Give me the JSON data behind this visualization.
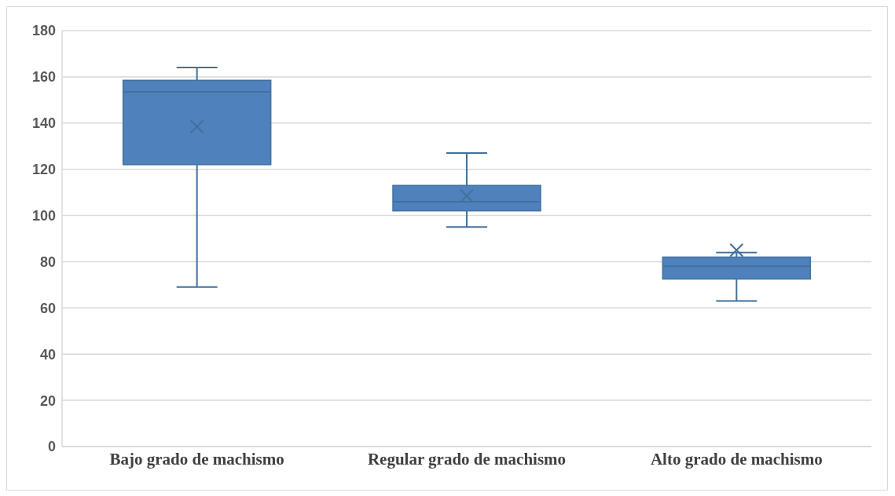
{
  "chart_data": {
    "type": "box",
    "categories": [
      "Bajo grado de machismo",
      "Regular grado de machismo",
      "Alto grado de machismo"
    ],
    "color": "#4f81bd",
    "boxes": [
      {
        "low": 69,
        "q1": 122,
        "median": 153.5,
        "q3": 158.5,
        "high": 164,
        "mean": 138.5
      },
      {
        "low": 95,
        "q1": 102,
        "median": 106,
        "q3": 113,
        "high": 127,
        "mean": 108.5
      },
      {
        "low": 63,
        "q1": 72.5,
        "median": 78,
        "q3": 82,
        "high": 84,
        "mean": 85
      }
    ],
    "ylim": [
      0,
      180
    ],
    "yticks": [
      0,
      20,
      40,
      60,
      80,
      100,
      120,
      140,
      160,
      180
    ],
    "grid": "y",
    "marker": "cross",
    "legend": false
  }
}
